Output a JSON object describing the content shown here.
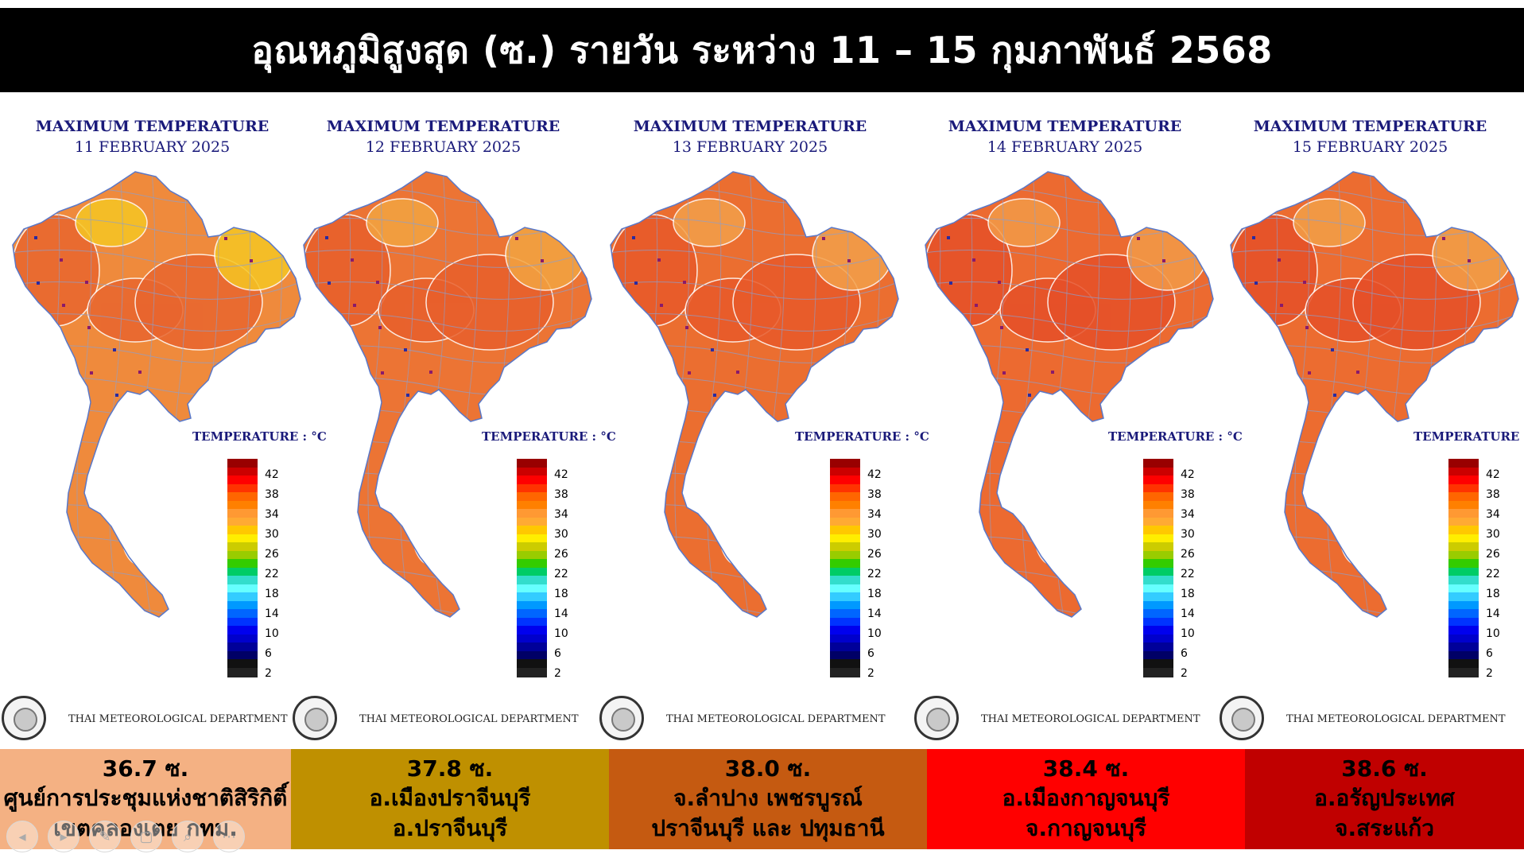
{
  "title": "อุณหภูมิสูงสุด (ซ.) รายวัน ระหว่าง 11 – 15 กุมภาพันธ์ 2568",
  "legend": {
    "label": "TEMPERATURE : °C",
    "ticks": [
      "42",
      "38",
      "34",
      "30",
      "26",
      "22",
      "18",
      "14",
      "10",
      "6",
      "2"
    ],
    "colors": [
      "#990000",
      "#cc0000",
      "#ff0000",
      "#ff3300",
      "#ff6600",
      "#ff8000",
      "#ff9933",
      "#ffaa33",
      "#ffc800",
      "#ffee00",
      "#cccc00",
      "#99cc00",
      "#33cc00",
      "#00cc66",
      "#33ddcc",
      "#66ffff",
      "#33ccff",
      "#0099ff",
      "#0066ff",
      "#0033ff",
      "#0000ee",
      "#0000cc",
      "#000099",
      "#000066",
      "#111111",
      "#222222"
    ]
  },
  "department": "THAI METEOROLOGICAL DEPARTMENT",
  "panels": [
    {
      "heading": "MAXIMUM TEMPERATURE",
      "date": "11 FEBRUARY   2025",
      "base": "#ef8a3c",
      "hot": "#e8652e",
      "cool": "#f5c624",
      "value": "36.7 ซ.",
      "line1": "ศูนย์การประชุมแห่งชาติสิริกิติ์",
      "line2": "เขตคลองเตย กทม.",
      "footer_color": "#f4b183"
    },
    {
      "heading": "MAXIMUM TEMPERATURE",
      "date": "12 FEBRUARY   2025",
      "base": "#ec7434",
      "hot": "#e8602c",
      "cool": "#f2a542",
      "value": "37.8 ซ.",
      "line1": "อ.เมืองปราจีนบุรี",
      "line2": "อ.ปราจีนบุรี",
      "footer_color": "#bf9000"
    },
    {
      "heading": "MAXIMUM TEMPERATURE",
      "date": "13 FEBRUARY   2025",
      "base": "#eb6e30",
      "hot": "#e85a2a",
      "cool": "#f2a04a",
      "value": "38.0 ซ.",
      "line1": "จ.ลำปาง เพชรบูรณ์",
      "line2": "ปราจีนบุรี และ ปทุมธานี",
      "footer_color": "#c55a11"
    },
    {
      "heading": "MAXIMUM TEMPERATURE",
      "date": "14 FEBRUARY   2025",
      "base": "#ec6a30",
      "hot": "#e55028",
      "cool": "#f29a48",
      "value": "38.4 ซ.",
      "line1": "อ.เมืองกาญจนบุรี",
      "line2": "จ.กาญจนบุรี",
      "footer_color": "#ff0000"
    },
    {
      "heading": "MAXIMUM TEMPERATURE",
      "date": "15 FEBRUARY   2025",
      "base": "#ec6c30",
      "hot": "#e55028",
      "cool": "#f2a048",
      "value": "38.6 ซ.",
      "line1": "อ.อรัญประเทศ",
      "line2": "จ.สระแก้ว",
      "footer_color": "#c00000"
    }
  ],
  "nav": [
    "◂",
    "▸",
    "✎",
    "▢",
    "⌕",
    "⋯"
  ]
}
